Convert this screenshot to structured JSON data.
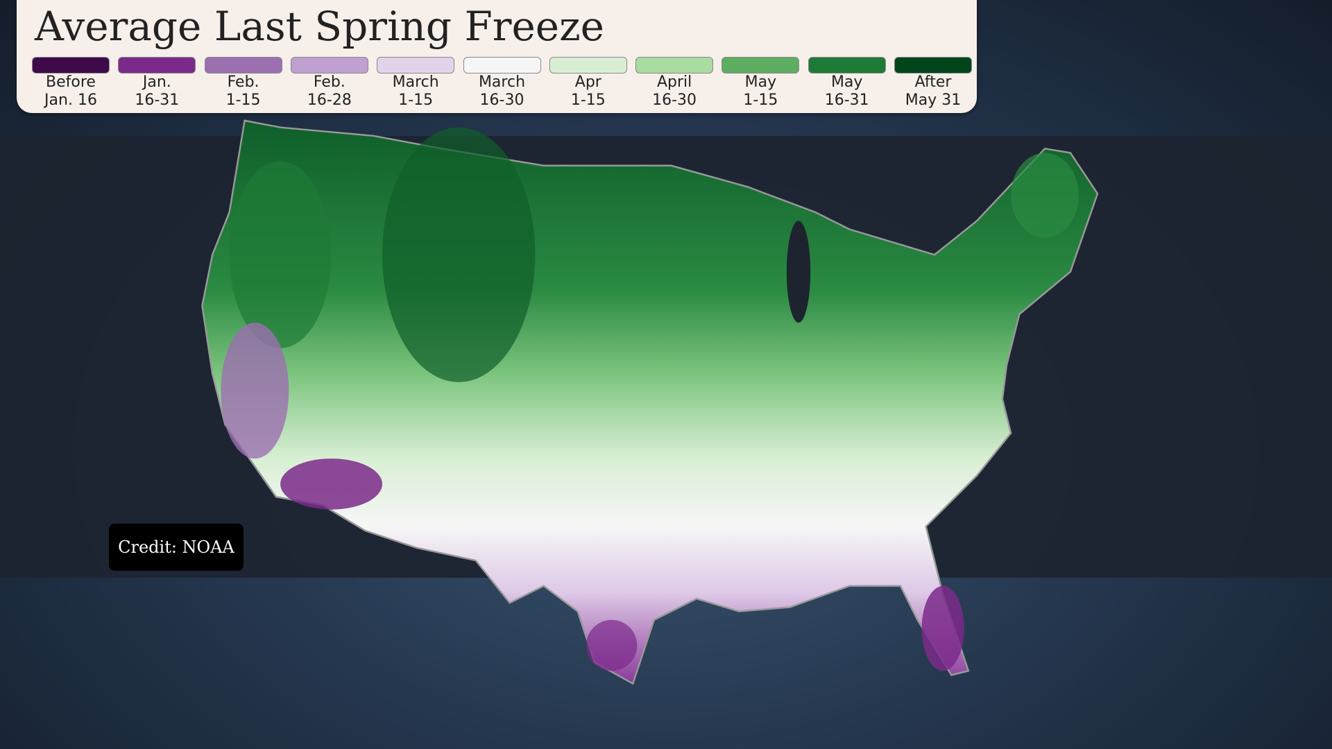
{
  "title": "Average Last Spring Freeze",
  "legend": {
    "items": [
      {
        "lines": [
          "Before",
          "Jan. 16"
        ],
        "color": "#3f0a4a"
      },
      {
        "lines": [
          "Jan.",
          "16-31"
        ],
        "color": "#7b2a8a"
      },
      {
        "lines": [
          "Feb.",
          "1-15"
        ],
        "color": "#9c6fb0"
      },
      {
        "lines": [
          "Feb.",
          "16-28"
        ],
        "color": "#bfa0d0"
      },
      {
        "lines": [
          "March",
          "1-15"
        ],
        "color": "#e3d3ea"
      },
      {
        "lines": [
          "March",
          "16-30"
        ],
        "color": "#f6f6f6"
      },
      {
        "lines": [
          "Apr",
          "1-15"
        ],
        "color": "#d8efd4"
      },
      {
        "lines": [
          "April",
          "16-30"
        ],
        "color": "#a8dca0"
      },
      {
        "lines": [
          "May",
          "1-15"
        ],
        "color": "#5eae62"
      },
      {
        "lines": [
          "May",
          "16-31"
        ],
        "color": "#1e7a36"
      },
      {
        "lines": [
          "After",
          "May 31"
        ],
        "color": "#00451b"
      }
    ]
  },
  "credit": "Credit: NOAA"
}
